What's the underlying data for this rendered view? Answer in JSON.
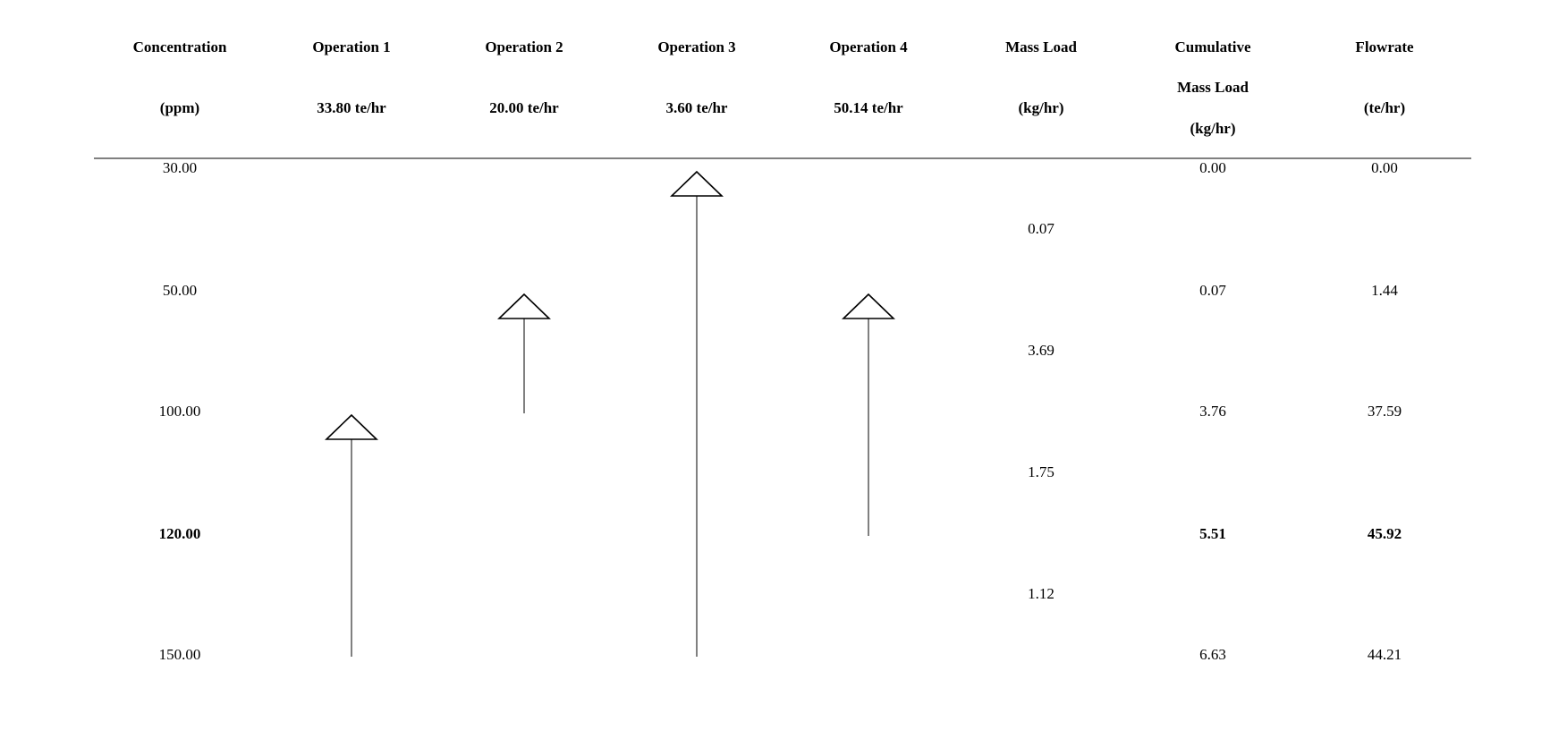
{
  "headers": [
    {
      "line1": "Concentration",
      "line2": "(ppm)"
    },
    {
      "line1": "Operation 1",
      "line2": "33.80 te/hr"
    },
    {
      "line1": "Operation 2",
      "line2": "20.00 te/hr"
    },
    {
      "line1": "Operation 3",
      "line2": "3.60 te/hr"
    },
    {
      "line1": "Operation 4",
      "line2": "50.14 te/hr"
    },
    {
      "line1": "Mass Load",
      "line2": "(kg/hr)"
    },
    {
      "line1": "Cumulative",
      "line2": "Mass Load",
      "line3": "(kg/hr)"
    },
    {
      "line1": "Flowrate",
      "line2": "(te/hr)"
    }
  ],
  "levels": [
    {
      "concentration": "30.00",
      "cumulative": "0.00",
      "flowrate": "0.00",
      "pinch": false
    },
    {
      "concentration": "50.00",
      "cumulative": "0.07",
      "flowrate": "1.44",
      "pinch": false
    },
    {
      "concentration": "100.00",
      "cumulative": "3.76",
      "flowrate": "37.59",
      "pinch": false
    },
    {
      "concentration": "120.00",
      "cumulative": "5.51",
      "flowrate": "45.92",
      "pinch": true
    },
    {
      "concentration": "150.00",
      "cumulative": "6.63",
      "flowrate": "44.21",
      "pinch": false
    }
  ],
  "interval_mass_loads": [
    "0.07",
    "3.69",
    "1.75",
    "1.12"
  ],
  "operations": [
    {
      "name": "Operation 1",
      "c_in": 100,
      "c_out": 150
    },
    {
      "name": "Operation 2",
      "c_in": 50,
      "c_out": 100
    },
    {
      "name": "Operation 3",
      "c_in": 30,
      "c_out": 150
    },
    {
      "name": "Operation 4",
      "c_in": 50,
      "c_out": 120
    }
  ]
}
